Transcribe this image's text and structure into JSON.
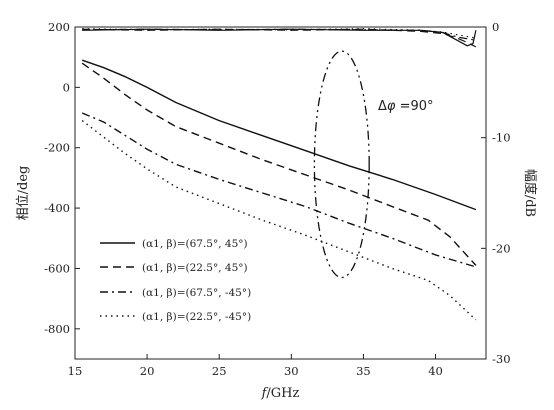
{
  "chart_data": {
    "type": "line",
    "title": "",
    "xlabel": "f/GHz",
    "ylabel_left": "相位/deg",
    "ylabel_right": "幅度/dB",
    "xlim": [
      15,
      43.5
    ],
    "ylim_left": [
      -900,
      200
    ],
    "ylim_right": [
      -30,
      0
    ],
    "x_ticks": [
      15,
      20,
      25,
      30,
      35,
      40
    ],
    "y_ticks_left": [
      200,
      0,
      -200,
      -400,
      -600,
      -800
    ],
    "y_ticks_right": [
      0,
      -10,
      -20,
      -30
    ],
    "grid": false,
    "legend_position": "lower-left",
    "annotation": {
      "text": "Δφ =90°",
      "ellipse_center": [
        33.5,
        -255
      ],
      "ellipse_semi_axes": [
        1.9,
        375
      ]
    },
    "series": [
      {
        "name": "(α1, β)=(67.5°, 45°)",
        "axis": "left",
        "style": "solid",
        "x": [
          15.5,
          17,
          18.5,
          20,
          22,
          25,
          28,
          31,
          34,
          37,
          40,
          42.8
        ],
        "y": [
          90,
          65,
          35,
          0,
          -50,
          -110,
          -160,
          -210,
          -260,
          -305,
          -355,
          -405
        ]
      },
      {
        "name": "(α1, β)=(22.5°, 45°)",
        "axis": "left",
        "style": "dashed",
        "x": [
          15.5,
          17,
          18.5,
          20,
          22,
          25,
          28,
          31,
          34,
          37,
          39.5,
          41,
          42.8
        ],
        "y": [
          80,
          30,
          -25,
          -75,
          -130,
          -185,
          -240,
          -290,
          -340,
          -395,
          -440,
          -495,
          -590
        ]
      },
      {
        "name": "(α1, β)=(67.5°, -45°)",
        "axis": "left",
        "style": "dashdot",
        "x": [
          15.5,
          17,
          18.5,
          20,
          22,
          25,
          28,
          31,
          34,
          37,
          40,
          42.8
        ],
        "y": [
          -85,
          -115,
          -160,
          -205,
          -255,
          -305,
          -350,
          -395,
          -450,
          -500,
          -555,
          -595
        ]
      },
      {
        "name": "(α1, β)=(22.5°, -45°)",
        "axis": "left",
        "style": "dotted",
        "x": [
          15.5,
          17,
          18.5,
          20,
          22,
          25,
          28,
          31,
          34,
          37,
          39.5,
          41,
          42.8
        ],
        "y": [
          -110,
          -165,
          -220,
          -270,
          -330,
          -385,
          -440,
          -490,
          -545,
          -600,
          -640,
          -690,
          -770
        ]
      },
      {
        "axis": "right",
        "style": "solid",
        "x": [
          15.5,
          20,
          25,
          30,
          35,
          39,
          40.5,
          41.5,
          42.2,
          42.6,
          42.8
        ],
        "y": [
          -0.3,
          -0.2,
          -0.3,
          -0.2,
          -0.3,
          -0.3,
          -0.5,
          -1.2,
          -1.7,
          -1.5,
          -0.3
        ]
      },
      {
        "axis": "right",
        "style": "dashed",
        "x": [
          15.5,
          20,
          25,
          30,
          35,
          39,
          40.5,
          41.5,
          42.2,
          42.8
        ],
        "y": [
          -0.2,
          -0.3,
          -0.2,
          -0.3,
          -0.2,
          -0.4,
          -0.6,
          -1.0,
          -1.4,
          -1.8
        ]
      },
      {
        "axis": "right",
        "style": "dashdot",
        "x": [
          15.5,
          20,
          25,
          30,
          35,
          39,
          40.5,
          41.5,
          42.8
        ],
        "y": [
          -0.25,
          -0.2,
          -0.25,
          -0.2,
          -0.25,
          -0.3,
          -0.5,
          -0.9,
          -1.2
        ]
      },
      {
        "axis": "right",
        "style": "dotted",
        "x": [
          15.5,
          20,
          25,
          30,
          35,
          39,
          40.5,
          41.5,
          42.8
        ],
        "y": [
          -0.15,
          -0.25,
          -0.2,
          -0.25,
          -0.15,
          -0.3,
          -0.45,
          -0.7,
          -1.0
        ]
      }
    ]
  },
  "legend": [
    "(α1, β)=(67.5°, 45°)",
    "(α1, β)=(22.5°, 45°)",
    "(α1, β)=(67.5°, -45°)",
    "(α1, β)=(22.5°, -45°)"
  ]
}
